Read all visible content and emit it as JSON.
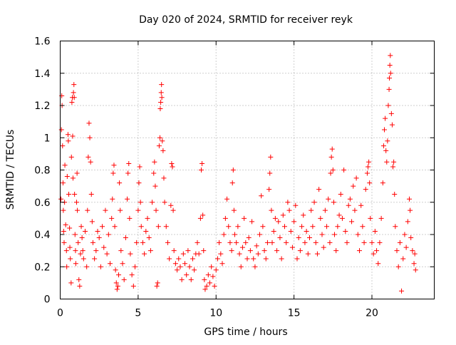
{
  "chart_data": {
    "type": "scatter",
    "title": "Day 020 of 2024, SRMTID for receiver reyk",
    "xlabel": "GPS time / hours",
    "ylabel": "SRMTID / TECUs",
    "xlim": [
      0,
      24
    ],
    "ylim": [
      0,
      1.6
    ],
    "xticks": [
      0,
      5,
      10,
      15,
      20
    ],
    "xtick_labels": [
      "0",
      "5",
      "10",
      "15",
      "20"
    ],
    "yticks": [
      0,
      0.2,
      0.4,
      0.6,
      0.8,
      1,
      1.2,
      1.4,
      1.6
    ],
    "ytick_labels": [
      "0",
      "0.2",
      "0.4",
      "0.6",
      "0.8",
      "1",
      "1.2",
      "1.4",
      "1.6"
    ],
    "grid": true,
    "marker": "+",
    "series": [
      {
        "name": "SRMTID",
        "color": "#ff0000",
        "points": [
          [
            0.05,
            0.62
          ],
          [
            0.08,
            1.05
          ],
          [
            0.1,
            1.26
          ],
          [
            0.12,
            1.2
          ],
          [
            0.15,
            0.95
          ],
          [
            0.18,
            0.72
          ],
          [
            0.2,
            0.55
          ],
          [
            0.22,
            0.42
          ],
          [
            0.25,
            0.35
          ],
          [
            0.28,
            0.6
          ],
          [
            0.3,
            0.83
          ],
          [
            0.35,
            0.46
          ],
          [
            0.4,
            0.3
          ],
          [
            0.42,
            0.2
          ],
          [
            0.45,
            0.76
          ],
          [
            0.5,
            1.02
          ],
          [
            0.52,
            0.98
          ],
          [
            0.55,
            0.65
          ],
          [
            0.6,
            0.44
          ],
          [
            0.62,
            0.32
          ],
          [
            0.65,
            0.25
          ],
          [
            0.7,
            0.1
          ],
          [
            0.72,
            0.88
          ],
          [
            0.75,
            1.22
          ],
          [
            0.78,
            1.25
          ],
          [
            0.8,
            1.01
          ],
          [
            0.82,
            0.75
          ],
          [
            0.85,
            1.28
          ],
          [
            0.88,
            1.33
          ],
          [
            0.9,
            1.25
          ],
          [
            0.92,
            0.65
          ],
          [
            0.95,
            0.4
          ],
          [
            0.98,
            0.3
          ],
          [
            1.0,
            0.22
          ],
          [
            1.05,
            0.6
          ],
          [
            1.08,
            0.78
          ],
          [
            1.1,
            0.55
          ],
          [
            1.15,
            0.35
          ],
          [
            1.2,
            0.12
          ],
          [
            1.25,
            0.08
          ],
          [
            1.3,
            0.28
          ],
          [
            1.35,
            0.45
          ],
          [
            1.4,
            0.38
          ],
          [
            1.45,
            0.3
          ],
          [
            1.5,
            0.25
          ],
          [
            1.6,
            0.42
          ],
          [
            1.7,
            0.2
          ],
          [
            1.75,
            0.55
          ],
          [
            1.8,
            0.88
          ],
          [
            1.85,
            1.09
          ],
          [
            1.9,
            1.0
          ],
          [
            1.95,
            0.85
          ],
          [
            2.0,
            0.65
          ],
          [
            2.05,
            0.48
          ],
          [
            2.1,
            0.35
          ],
          [
            2.2,
            0.25
          ],
          [
            2.3,
            0.3
          ],
          [
            2.4,
            0.42
          ],
          [
            2.5,
            0.38
          ],
          [
            2.6,
            0.2
          ],
          [
            2.7,
            0.45
          ],
          [
            2.8,
            0.32
          ],
          [
            2.9,
            0.55
          ],
          [
            3.0,
            0.28
          ],
          [
            3.1,
            0.4
          ],
          [
            3.2,
            0.22
          ],
          [
            3.3,
            0.5
          ],
          [
            3.35,
            0.62
          ],
          [
            3.4,
            0.78
          ],
          [
            3.45,
            0.83
          ],
          [
            3.5,
            0.45
          ],
          [
            3.55,
            0.18
          ],
          [
            3.6,
            0.1
          ],
          [
            3.65,
            0.06
          ],
          [
            3.7,
            0.08
          ],
          [
            3.75,
            0.15
          ],
          [
            3.8,
            0.72
          ],
          [
            3.85,
            0.55
          ],
          [
            3.9,
            0.3
          ],
          [
            4.0,
            0.22
          ],
          [
            4.1,
            0.12
          ],
          [
            4.2,
            0.38
          ],
          [
            4.3,
            0.62
          ],
          [
            4.35,
            0.78
          ],
          [
            4.4,
            0.84
          ],
          [
            4.45,
            0.5
          ],
          [
            4.5,
            0.28
          ],
          [
            4.6,
            0.15
          ],
          [
            4.7,
            0.08
          ],
          [
            4.8,
            0.2
          ],
          [
            4.9,
            0.35
          ],
          [
            5.0,
            0.55
          ],
          [
            5.05,
            0.72
          ],
          [
            5.1,
            0.82
          ],
          [
            5.15,
            0.6
          ],
          [
            5.2,
            0.45
          ],
          [
            5.3,
            0.35
          ],
          [
            5.4,
            0.28
          ],
          [
            5.5,
            0.42
          ],
          [
            5.6,
            0.5
          ],
          [
            5.7,
            0.38
          ],
          [
            5.8,
            0.3
          ],
          [
            5.9,
            0.6
          ],
          [
            6.0,
            0.78
          ],
          [
            6.05,
            0.85
          ],
          [
            6.1,
            0.7
          ],
          [
            6.15,
            0.55
          ],
          [
            6.2,
            0.08
          ],
          [
            6.25,
            0.1
          ],
          [
            6.3,
            0.45
          ],
          [
            6.35,
            0.95
          ],
          [
            6.4,
            1.0
          ],
          [
            6.42,
            1.18
          ],
          [
            6.45,
            1.22
          ],
          [
            6.48,
            1.28
          ],
          [
            6.5,
            1.33
          ],
          [
            6.52,
            1.25
          ],
          [
            6.55,
            0.98
          ],
          [
            6.6,
            0.92
          ],
          [
            6.65,
            0.75
          ],
          [
            6.7,
            0.6
          ],
          [
            6.8,
            0.45
          ],
          [
            6.9,
            0.35
          ],
          [
            7.0,
            0.25
          ],
          [
            7.1,
            0.58
          ],
          [
            7.15,
            0.84
          ],
          [
            7.2,
            0.82
          ],
          [
            7.25,
            0.55
          ],
          [
            7.3,
            0.3
          ],
          [
            7.4,
            0.22
          ],
          [
            7.5,
            0.18
          ],
          [
            7.6,
            0.25
          ],
          [
            7.7,
            0.2
          ],
          [
            7.8,
            0.12
          ],
          [
            7.9,
            0.28
          ],
          [
            8.0,
            0.22
          ],
          [
            8.1,
            0.15
          ],
          [
            8.2,
            0.3
          ],
          [
            8.3,
            0.2
          ],
          [
            8.4,
            0.12
          ],
          [
            8.5,
            0.25
          ],
          [
            8.6,
            0.18
          ],
          [
            8.7,
            0.28
          ],
          [
            8.8,
            0.35
          ],
          [
            8.9,
            0.28
          ],
          [
            9.0,
            0.5
          ],
          [
            9.05,
            0.8
          ],
          [
            9.1,
            0.84
          ],
          [
            9.15,
            0.52
          ],
          [
            9.2,
            0.3
          ],
          [
            9.25,
            0.12
          ],
          [
            9.3,
            0.06
          ],
          [
            9.4,
            0.08
          ],
          [
            9.5,
            0.15
          ],
          [
            9.6,
            0.1
          ],
          [
            9.7,
            0.2
          ],
          [
            9.8,
            0.14
          ],
          [
            9.9,
            0.08
          ],
          [
            10.0,
            0.18
          ],
          [
            10.1,
            0.25
          ],
          [
            10.2,
            0.35
          ],
          [
            10.3,
            0.28
          ],
          [
            10.4,
            0.22
          ],
          [
            10.5,
            0.4
          ],
          [
            10.6,
            0.5
          ],
          [
            10.7,
            0.62
          ],
          [
            10.8,
            0.45
          ],
          [
            10.9,
            0.35
          ],
          [
            11.0,
            0.3
          ],
          [
            11.05,
            0.72
          ],
          [
            11.1,
            0.8
          ],
          [
            11.15,
            0.55
          ],
          [
            11.2,
            0.4
          ],
          [
            11.3,
            0.35
          ],
          [
            11.4,
            0.45
          ],
          [
            11.5,
            0.28
          ],
          [
            11.6,
            0.2
          ],
          [
            11.7,
            0.32
          ],
          [
            11.8,
            0.5
          ],
          [
            11.9,
            0.35
          ],
          [
            12.0,
            0.25
          ],
          [
            12.1,
            0.38
          ],
          [
            12.2,
            0.3
          ],
          [
            12.3,
            0.48
          ],
          [
            12.4,
            0.25
          ],
          [
            12.5,
            0.2
          ],
          [
            12.6,
            0.33
          ],
          [
            12.7,
            0.28
          ],
          [
            12.8,
            0.4
          ],
          [
            12.9,
            0.64
          ],
          [
            13.0,
            0.45
          ],
          [
            13.1,
            0.3
          ],
          [
            13.2,
            0.25
          ],
          [
            13.3,
            0.35
          ],
          [
            13.4,
            0.68
          ],
          [
            13.45,
            0.78
          ],
          [
            13.5,
            0.88
          ],
          [
            13.55,
            0.55
          ],
          [
            13.6,
            0.35
          ],
          [
            13.7,
            0.42
          ],
          [
            13.8,
            0.5
          ],
          [
            13.9,
            0.3
          ],
          [
            14.0,
            0.48
          ],
          [
            14.1,
            0.38
          ],
          [
            14.2,
            0.25
          ],
          [
            14.3,
            0.52
          ],
          [
            14.4,
            0.45
          ],
          [
            14.5,
            0.35
          ],
          [
            14.6,
            0.6
          ],
          [
            14.7,
            0.55
          ],
          [
            14.8,
            0.42
          ],
          [
            14.9,
            0.32
          ],
          [
            15.0,
            0.48
          ],
          [
            15.1,
            0.58
          ],
          [
            15.2,
            0.25
          ],
          [
            15.3,
            0.38
          ],
          [
            15.4,
            0.3
          ],
          [
            15.5,
            0.45
          ],
          [
            15.6,
            0.52
          ],
          [
            15.7,
            0.35
          ],
          [
            15.8,
            0.42
          ],
          [
            15.9,
            0.28
          ],
          [
            16.0,
            0.38
          ],
          [
            16.1,
            0.55
          ],
          [
            16.2,
            0.45
          ],
          [
            16.3,
            0.6
          ],
          [
            16.4,
            0.35
          ],
          [
            16.5,
            0.28
          ],
          [
            16.6,
            0.68
          ],
          [
            16.7,
            0.5
          ],
          [
            16.8,
            0.4
          ],
          [
            16.9,
            0.32
          ],
          [
            17.0,
            0.55
          ],
          [
            17.1,
            0.45
          ],
          [
            17.2,
            0.62
          ],
          [
            17.3,
            0.35
          ],
          [
            17.35,
            0.78
          ],
          [
            17.4,
            0.88
          ],
          [
            17.45,
            0.93
          ],
          [
            17.5,
            0.8
          ],
          [
            17.55,
            0.6
          ],
          [
            17.6,
            0.4
          ],
          [
            17.7,
            0.3
          ],
          [
            17.8,
            0.45
          ],
          [
            17.9,
            0.52
          ],
          [
            18.0,
            0.65
          ],
          [
            18.1,
            0.5
          ],
          [
            18.2,
            0.8
          ],
          [
            18.3,
            0.42
          ],
          [
            18.4,
            0.35
          ],
          [
            18.5,
            0.58
          ],
          [
            18.6,
            0.62
          ],
          [
            18.7,
            0.48
          ],
          [
            18.8,
            0.7
          ],
          [
            18.9,
            0.55
          ],
          [
            19.0,
            0.75
          ],
          [
            19.1,
            0.4
          ],
          [
            19.2,
            0.3
          ],
          [
            19.3,
            0.58
          ],
          [
            19.4,
            0.45
          ],
          [
            19.5,
            0.35
          ],
          [
            19.6,
            0.68
          ],
          [
            19.7,
            0.78
          ],
          [
            19.75,
            0.82
          ],
          [
            19.8,
            0.85
          ],
          [
            19.85,
            0.72
          ],
          [
            19.9,
            0.5
          ],
          [
            20.0,
            0.35
          ],
          [
            20.1,
            0.28
          ],
          [
            20.2,
            0.42
          ],
          [
            20.3,
            0.3
          ],
          [
            20.4,
            0.22
          ],
          [
            20.5,
            0.35
          ],
          [
            20.6,
            0.5
          ],
          [
            20.7,
            0.72
          ],
          [
            20.75,
            0.95
          ],
          [
            20.8,
            1.05
          ],
          [
            20.85,
            1.12
          ],
          [
            20.9,
            0.92
          ],
          [
            20.95,
            0.85
          ],
          [
            21.0,
            0.98
          ],
          [
            21.05,
            1.2
          ],
          [
            21.1,
            1.3
          ],
          [
            21.12,
            1.37
          ],
          [
            21.15,
            1.45
          ],
          [
            21.18,
            1.51
          ],
          [
            21.2,
            1.4
          ],
          [
            21.25,
            1.15
          ],
          [
            21.3,
            1.08
          ],
          [
            21.35,
            0.82
          ],
          [
            21.4,
            0.85
          ],
          [
            21.45,
            0.65
          ],
          [
            21.5,
            0.45
          ],
          [
            21.6,
            0.3
          ],
          [
            21.7,
            0.2
          ],
          [
            21.8,
            0.35
          ],
          [
            21.9,
            0.05
          ],
          [
            22.0,
            0.25
          ],
          [
            22.1,
            0.4
          ],
          [
            22.2,
            0.32
          ],
          [
            22.3,
            0.48
          ],
          [
            22.4,
            0.62
          ],
          [
            22.45,
            0.55
          ],
          [
            22.5,
            0.38
          ],
          [
            22.6,
            0.3
          ],
          [
            22.7,
            0.22
          ],
          [
            22.75,
            0.28
          ],
          [
            22.8,
            0.18
          ]
        ]
      }
    ]
  }
}
